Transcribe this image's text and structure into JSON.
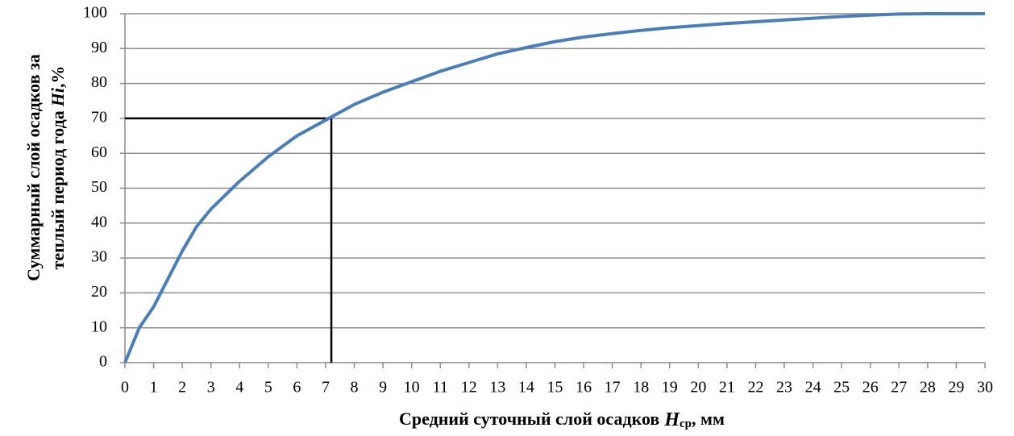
{
  "chart_data": {
    "type": "line",
    "y_label": {
      "line1": "Суммарный слой осадков за",
      "line2": "теплый период года",
      "symbol": "Hi",
      "suffix": ",%"
    },
    "x_label": {
      "text": "Средний суточный слой осадков",
      "symbol": "H",
      "subscript": "ср",
      "suffix": ", мм"
    },
    "x": [
      0,
      0.5,
      1,
      1.5,
      2,
      2.5,
      3,
      4,
      5,
      6,
      7,
      8,
      9,
      10,
      11,
      12,
      13,
      14,
      15,
      16,
      17,
      18,
      19,
      20,
      21,
      22,
      23,
      24,
      25,
      26,
      27,
      28,
      29,
      30
    ],
    "series": [
      {
        "color": "#4a7ebb",
        "values": [
          0,
          10,
          16,
          24,
          32,
          39,
          44,
          52,
          59,
          65,
          69.5,
          74,
          77.5,
          80.5,
          83.5,
          86,
          88.5,
          90.3,
          92,
          93.3,
          94.3,
          95.2,
          96,
          96.6,
          97.2,
          97.7,
          98.2,
          98.7,
          99.2,
          99.6,
          99.9,
          100,
          100,
          100
        ]
      }
    ],
    "reference": {
      "x": 7.2,
      "y": 70,
      "color": "#000000"
    },
    "xlim": [
      0,
      30
    ],
    "xticks": [
      0,
      1,
      2,
      3,
      4,
      5,
      6,
      7,
      8,
      9,
      10,
      11,
      12,
      13,
      14,
      15,
      16,
      17,
      18,
      19,
      20,
      21,
      22,
      23,
      24,
      25,
      26,
      27,
      28,
      29,
      30
    ],
    "ylim": [
      0,
      100
    ],
    "yticks": [
      0,
      10,
      20,
      30,
      40,
      50,
      60,
      70,
      80,
      90,
      100
    ],
    "grid": true
  }
}
